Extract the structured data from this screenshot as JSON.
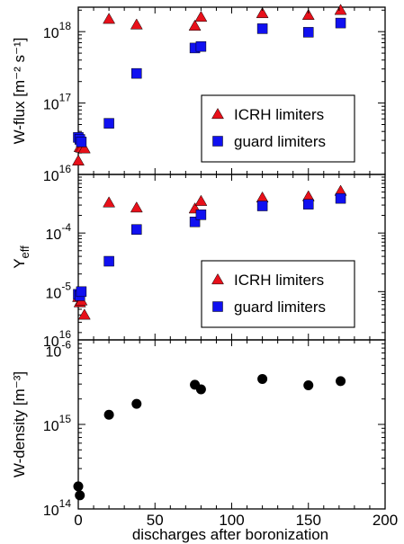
{
  "chart_data": {
    "type": "scatter",
    "xlabel": "discharges after boronization",
    "x_ticks": [
      "0",
      "50",
      "100",
      "150",
      "200"
    ],
    "xlim": [
      0,
      200
    ],
    "panels": [
      {
        "id": "wflux",
        "ylabel": "W-flux [m⁻² s⁻¹]",
        "yscale": "log",
        "ylim": [
          1e+16,
          2.2e+18
        ],
        "y_ticks": [
          {
            "value": 1e+16,
            "base": "10",
            "exp": "16"
          },
          {
            "value": 1e+17,
            "base": "10",
            "exp": "17"
          },
          {
            "value": 1e+18,
            "base": "10",
            "exp": "18"
          }
        ],
        "legend": {
          "position": "lower-right",
          "entries": [
            "ICRH limiters",
            "guard limiters"
          ]
        },
        "series": [
          {
            "name": "ICRH limiters",
            "marker": "triangle",
            "color": "#e8101a",
            "x": [
              0,
              1,
              2,
              4,
              20,
              38,
              76,
              80,
              120,
              150,
              171
            ],
            "y": [
              1.55e+16,
              2.4e+16,
              2.35e+16,
              2.3e+16,
              1.5e+18,
              1.25e+18,
              1.2e+18,
              1.6e+18,
              1.8e+18,
              1.7e+18,
              2e+18
            ]
          },
          {
            "name": "guard limiters",
            "marker": "square",
            "color": "#1010f0",
            "x": [
              0,
              1,
              2,
              20,
              38,
              76,
              80,
              120,
              150,
              171
            ],
            "y": [
              3.3e+16,
              3.1e+16,
              2.85e+16,
              5.2e+16,
              2.6e+17,
              5.9e+17,
              6.2e+17,
              1.1e+18,
              9.8e+17,
              1.32e+18
            ]
          }
        ]
      },
      {
        "id": "yeff",
        "ylabel": "Y_eff",
        "ylabel_main": "Y",
        "ylabel_sub": "eff",
        "yscale": "log",
        "ylim": [
          1.5e-06,
          0.001
        ],
        "y_ticks": [
          {
            "value": 1e-06,
            "base": "10",
            "exp": "-6"
          },
          {
            "value": 1e-05,
            "base": "10",
            "exp": "-5"
          },
          {
            "value": 0.0001,
            "base": "10",
            "exp": "-4"
          }
        ],
        "legend": {
          "position": "lower-right",
          "entries": [
            "ICRH limiters",
            "guard limiters"
          ]
        },
        "series": [
          {
            "name": "ICRH limiters",
            "marker": "triangle",
            "color": "#e8101a",
            "x": [
              0,
              1,
              2,
              4,
              20,
              38,
              76,
              80,
              120,
              150,
              171
            ],
            "y": [
              8e-06,
              6.5e-06,
              7e-06,
              4e-06,
              0.00033,
              0.00027,
              0.00026,
              0.00035,
              0.0004,
              0.00042,
              0.00052
            ]
          },
          {
            "name": "guard limiters",
            "marker": "square",
            "color": "#1010f0",
            "x": [
              0,
              1,
              2,
              20,
              38,
              76,
              80,
              120,
              150,
              171
            ],
            "y": [
              9e-06,
              8.5e-06,
              1e-05,
              3.3e-05,
              0.000115,
              0.000155,
              0.000205,
              0.00029,
              0.00031,
              0.00039
            ]
          }
        ]
      },
      {
        "id": "wdensity",
        "ylabel": "W-density [m⁻³]",
        "yscale": "log",
        "ylim": [
          100000000000000.0,
          1e+16
        ],
        "y_ticks": [
          {
            "value": 100000000000000.0,
            "base": "10",
            "exp": "14"
          },
          {
            "value": 1000000000000000.0,
            "base": "10",
            "exp": "15"
          },
          {
            "value": 1e+16,
            "base": "10",
            "exp": "16"
          }
        ],
        "series": [
          {
            "name": "",
            "marker": "circle",
            "color": "#000000",
            "x": [
              0,
              1,
              20,
              38,
              76,
              80,
              120,
              150,
              171
            ],
            "y": [
              185000000000000.0,
              145000000000000.0,
              1300000000000000.0,
              1750000000000000.0,
              2950000000000000.0,
              2600000000000000.0,
              3450000000000000.0,
              2900000000000000.0,
              3250000000000000.0
            ]
          }
        ]
      }
    ]
  }
}
